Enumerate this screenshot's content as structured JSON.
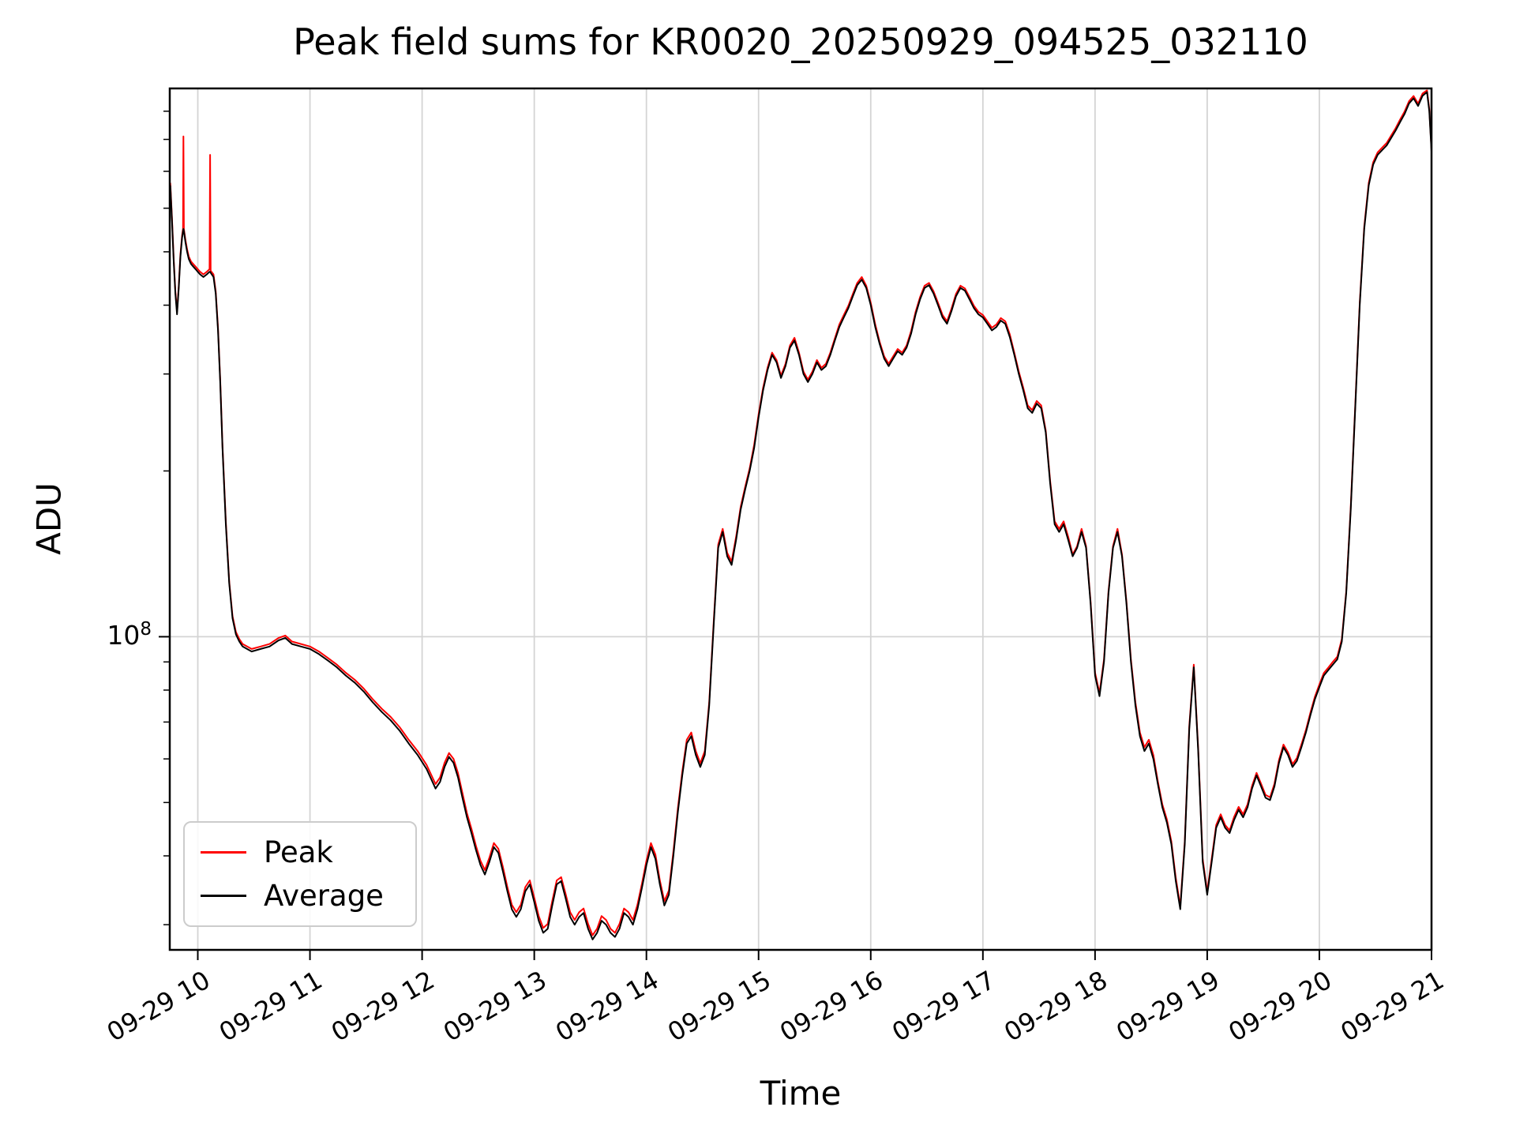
{
  "chart_data": {
    "type": "line",
    "title": "Peak field sums for KR0020_20250929_094525_032110",
    "xlabel": "Time",
    "ylabel": "ADU",
    "y_scale": "log",
    "grid": true,
    "legend_location": "lower left",
    "ylim": [
      27000000,
      990000000
    ],
    "x_hours_range": [
      9.75,
      21.0
    ],
    "x_tick_hours": [
      10,
      11,
      12,
      13,
      14,
      15,
      16,
      17,
      18,
      19,
      20,
      21
    ],
    "x_tick_labels": [
      "09-29 10",
      "09-29 11",
      "09-29 12",
      "09-29 13",
      "09-29 14",
      "09-29 15",
      "09-29 16",
      "09-29 17",
      "09-29 18",
      "09-29 19",
      "09-29 20",
      "09-29 21"
    ],
    "y_major_ticks": [
      100000000
    ],
    "y_tick_label": {
      "base": "10",
      "exponent": "8"
    },
    "values_scale": 10000000,
    "x": [
      9.755,
      9.77,
      9.785,
      9.8,
      9.815,
      9.83,
      9.845,
      9.86,
      9.868,
      9.872,
      9.876,
      9.89,
      9.905,
      9.92,
      9.94,
      9.96,
      9.98,
      10.0,
      10.02,
      10.05,
      10.08,
      10.105,
      10.11,
      10.115,
      10.14,
      10.16,
      10.18,
      10.2,
      10.22,
      10.25,
      10.28,
      10.31,
      10.34,
      10.37,
      10.4,
      10.48,
      10.56,
      10.64,
      10.72,
      10.78,
      10.84,
      10.92,
      11.0,
      11.08,
      11.16,
      11.24,
      11.32,
      11.4,
      11.48,
      11.56,
      11.64,
      11.72,
      11.8,
      11.88,
      11.96,
      12.04,
      12.12,
      12.16,
      12.2,
      12.24,
      12.28,
      12.32,
      12.36,
      12.4,
      12.44,
      12.48,
      12.52,
      12.56,
      12.6,
      12.64,
      12.68,
      12.72,
      12.76,
      12.8,
      12.84,
      12.88,
      12.92,
      12.96,
      13.0,
      13.04,
      13.08,
      13.12,
      13.16,
      13.2,
      13.24,
      13.28,
      13.32,
      13.36,
      13.4,
      13.44,
      13.48,
      13.52,
      13.56,
      13.6,
      13.64,
      13.68,
      13.72,
      13.76,
      13.8,
      13.84,
      13.88,
      13.92,
      13.96,
      14.0,
      14.04,
      14.08,
      14.12,
      14.16,
      14.2,
      14.24,
      14.28,
      14.32,
      14.36,
      14.4,
      14.44,
      14.48,
      14.52,
      14.56,
      14.6,
      14.64,
      14.68,
      14.72,
      14.76,
      14.8,
      14.84,
      14.88,
      14.92,
      14.96,
      15.0,
      15.04,
      15.08,
      15.12,
      15.16,
      15.2,
      15.24,
      15.28,
      15.32,
      15.36,
      15.4,
      15.44,
      15.48,
      15.52,
      15.56,
      15.6,
      15.64,
      15.68,
      15.72,
      15.76,
      15.8,
      15.84,
      15.88,
      15.92,
      15.96,
      16.0,
      16.04,
      16.08,
      16.12,
      16.16,
      16.2,
      16.24,
      16.28,
      16.32,
      16.36,
      16.4,
      16.44,
      16.48,
      16.52,
      16.56,
      16.6,
      16.64,
      16.68,
      16.72,
      16.76,
      16.8,
      16.84,
      16.88,
      16.92,
      16.96,
      17.0,
      17.04,
      17.08,
      17.12,
      17.16,
      17.2,
      17.24,
      17.28,
      17.32,
      17.36,
      17.4,
      17.44,
      17.48,
      17.52,
      17.56,
      17.6,
      17.64,
      17.68,
      17.72,
      17.76,
      17.8,
      17.84,
      17.88,
      17.92,
      17.96,
      18.0,
      18.04,
      18.08,
      18.12,
      18.16,
      18.2,
      18.24,
      18.28,
      18.32,
      18.36,
      18.4,
      18.44,
      18.48,
      18.52,
      18.56,
      18.6,
      18.64,
      18.68,
      18.72,
      18.76,
      18.8,
      18.84,
      18.88,
      18.92,
      18.96,
      19.0,
      19.04,
      19.08,
      19.12,
      19.16,
      19.2,
      19.24,
      19.28,
      19.32,
      19.36,
      19.4,
      19.44,
      19.48,
      19.52,
      19.56,
      19.6,
      19.64,
      19.68,
      19.72,
      19.76,
      19.8,
      19.84,
      19.88,
      19.92,
      19.96,
      20.0,
      20.04,
      20.08,
      20.12,
      20.16,
      20.2,
      20.24,
      20.28,
      20.32,
      20.36,
      20.4,
      20.44,
      20.48,
      20.52,
      20.56,
      20.6,
      20.64,
      20.68,
      20.72,
      20.76,
      20.8,
      20.84,
      20.88,
      20.92,
      20.96,
      20.98,
      21.0
    ],
    "series": [
      {
        "name": "Peak",
        "color": "#ff0000",
        "values": [
          66.7,
          57.6,
          48.5,
          42.4,
          38.9,
          43.4,
          49.5,
          53.5,
          55.1,
          81,
          55,
          52.5,
          50.5,
          49,
          48,
          47.5,
          47,
          46.5,
          46,
          45.5,
          46,
          46.5,
          75,
          46.2,
          45.5,
          42.4,
          36.4,
          29.3,
          22.2,
          16.2,
          12.6,
          10.9,
          10.2,
          9.9,
          9.7,
          9.5,
          9.6,
          9.7,
          9.95,
          10.05,
          9.8,
          9.7,
          9.6,
          9.4,
          9.15,
          8.9,
          8.6,
          8.35,
          8.05,
          7.7,
          7.4,
          7.15,
          6.85,
          6.5,
          6.2,
          5.85,
          5.4,
          5.55,
          5.9,
          6.15,
          6.0,
          5.65,
          5.2,
          4.78,
          4.48,
          4.17,
          3.92,
          3.77,
          3.97,
          4.22,
          4.12,
          3.82,
          3.51,
          3.26,
          3.16,
          3.26,
          3.51,
          3.61,
          3.36,
          3.11,
          2.96,
          3.01,
          3.31,
          3.61,
          3.66,
          3.41,
          3.16,
          3.06,
          3.16,
          3.21,
          3.01,
          2.87,
          2.95,
          3.11,
          3.06,
          2.95,
          2.9,
          3.01,
          3.21,
          3.16,
          3.06,
          3.26,
          3.56,
          3.92,
          4.22,
          4.02,
          3.61,
          3.31,
          3.46,
          4.07,
          4.88,
          5.69,
          6.5,
          6.7,
          6.2,
          5.89,
          6.2,
          7.6,
          10.65,
          14.7,
          15.7,
          14.2,
          13.7,
          15.2,
          17.2,
          18.7,
          20.2,
          22.3,
          25.3,
          28.3,
          30.8,
          32.8,
          31.8,
          29.8,
          31.3,
          33.8,
          34.9,
          32.8,
          30.3,
          29.3,
          30.3,
          31.8,
          30.8,
          31.3,
          32.8,
          34.8,
          36.9,
          38.4,
          39.9,
          41.9,
          43.9,
          45.0,
          43.4,
          40.4,
          36.9,
          34.3,
          32.3,
          31.3,
          32.3,
          33.3,
          32.8,
          33.8,
          35.9,
          38.9,
          41.4,
          43.4,
          43.9,
          42.4,
          40.4,
          38.4,
          37.4,
          39.4,
          41.9,
          43.4,
          42.9,
          41.4,
          39.9,
          38.9,
          38.4,
          37.4,
          36.4,
          36.9,
          37.9,
          37.4,
          35.4,
          32.8,
          30.3,
          28.3,
          26.3,
          25.8,
          26.8,
          26.3,
          23.7,
          19.2,
          16.2,
          15.7,
          16.2,
          15.2,
          14.1,
          14.6,
          15.7,
          14.6,
          11.6,
          8.6,
          7.9,
          9.1,
          12.1,
          14.6,
          15.7,
          14.1,
          11.6,
          9.1,
          7.6,
          6.7,
          6.3,
          6.5,
          6.1,
          5.46,
          4.96,
          4.66,
          4.25,
          3.65,
          3.24,
          4.25,
          6.88,
          8.9,
          6.27,
          3.95,
          3.44,
          3.95,
          4.55,
          4.76,
          4.55,
          4.45,
          4.71,
          4.91,
          4.76,
          4.96,
          5.36,
          5.66,
          5.41,
          5.16,
          5.11,
          5.41,
          5.97,
          6.37,
          6.17,
          5.87,
          6.02,
          6.37,
          6.77,
          7.28,
          7.78,
          8.19,
          8.59,
          8.79,
          9.0,
          9.2,
          9.9,
          12.1,
          17.2,
          26.3,
          40.4,
          55.6,
          66.7,
          72.7,
          75.8,
          77.3,
          78.8,
          81.3,
          83.8,
          86.9,
          89.9,
          93.9,
          95.9,
          92.9,
          96.9,
          98.2,
          90.8,
          76.7
        ]
      },
      {
        "name": "Average",
        "color": "#000000",
        "values": [
          66,
          57,
          48,
          42,
          38.5,
          43,
          49,
          53,
          54.5,
          55,
          54.5,
          52,
          50,
          48.5,
          47.5,
          47,
          46.5,
          46,
          45.5,
          45,
          45.5,
          46,
          46,
          45.8,
          45,
          42,
          36,
          29,
          22,
          16,
          12.5,
          10.8,
          10.1,
          9.8,
          9.6,
          9.4,
          9.5,
          9.6,
          9.85,
          9.95,
          9.7,
          9.6,
          9.5,
          9.3,
          9.05,
          8.8,
          8.5,
          8.25,
          7.95,
          7.6,
          7.3,
          7.05,
          6.75,
          6.4,
          6.1,
          5.75,
          5.3,
          5.45,
          5.8,
          6.05,
          5.9,
          5.55,
          5.1,
          4.7,
          4.4,
          4.1,
          3.85,
          3.7,
          3.9,
          4.15,
          4.05,
          3.75,
          3.45,
          3.2,
          3.1,
          3.2,
          3.45,
          3.55,
          3.3,
          3.05,
          2.9,
          2.95,
          3.25,
          3.55,
          3.6,
          3.35,
          3.1,
          3.0,
          3.1,
          3.15,
          2.95,
          2.82,
          2.9,
          3.05,
          3.0,
          2.9,
          2.85,
          2.95,
          3.15,
          3.1,
          3.0,
          3.2,
          3.5,
          3.85,
          4.15,
          3.95,
          3.55,
          3.25,
          3.4,
          4.0,
          4.8,
          5.6,
          6.4,
          6.6,
          6.1,
          5.8,
          6.1,
          7.5,
          10.5,
          14.5,
          15.5,
          14.0,
          13.5,
          15.0,
          17.0,
          18.5,
          20.0,
          22.0,
          25.0,
          28.0,
          30.5,
          32.5,
          31.5,
          29.5,
          31.0,
          33.5,
          34.5,
          32.5,
          30.0,
          29.0,
          30.0,
          31.5,
          30.5,
          31.0,
          32.5,
          34.5,
          36.5,
          38.0,
          39.5,
          41.5,
          43.5,
          44.5,
          43.0,
          40.0,
          36.5,
          34.0,
          32.0,
          31.0,
          32.0,
          33.0,
          32.5,
          33.5,
          35.5,
          38.5,
          41.0,
          43.0,
          43.5,
          42.0,
          40.0,
          38.0,
          37.0,
          39.0,
          41.5,
          43.0,
          42.5,
          41.0,
          39.5,
          38.5,
          38.0,
          37.0,
          36.0,
          36.5,
          37.5,
          37.0,
          35.0,
          32.5,
          30.0,
          28.0,
          26.0,
          25.5,
          26.5,
          26.0,
          23.5,
          19.0,
          16.0,
          15.5,
          16.0,
          15.0,
          14.0,
          14.5,
          15.5,
          14.5,
          11.5,
          8.5,
          7.8,
          9.0,
          12.0,
          14.5,
          15.5,
          14.0,
          11.5,
          9.0,
          7.5,
          6.6,
          6.2,
          6.4,
          6.0,
          5.4,
          4.9,
          4.6,
          4.2,
          3.6,
          3.2,
          4.2,
          6.8,
          8.8,
          6.2,
          3.9,
          3.4,
          3.9,
          4.5,
          4.7,
          4.5,
          4.4,
          4.65,
          4.85,
          4.7,
          4.9,
          5.3,
          5.6,
          5.35,
          5.1,
          5.05,
          5.35,
          5.9,
          6.3,
          6.1,
          5.8,
          5.95,
          6.3,
          6.7,
          7.2,
          7.7,
          8.1,
          8.5,
          8.7,
          8.9,
          9.1,
          9.8,
          12.0,
          17.0,
          26.0,
          40.0,
          55.0,
          66.0,
          72.0,
          75.0,
          76.5,
          78.0,
          80.5,
          83.0,
          86.0,
          89.0,
          93.0,
          95.0,
          92.0,
          96.0,
          97.5,
          90.0,
          76.0
        ]
      }
    ]
  }
}
